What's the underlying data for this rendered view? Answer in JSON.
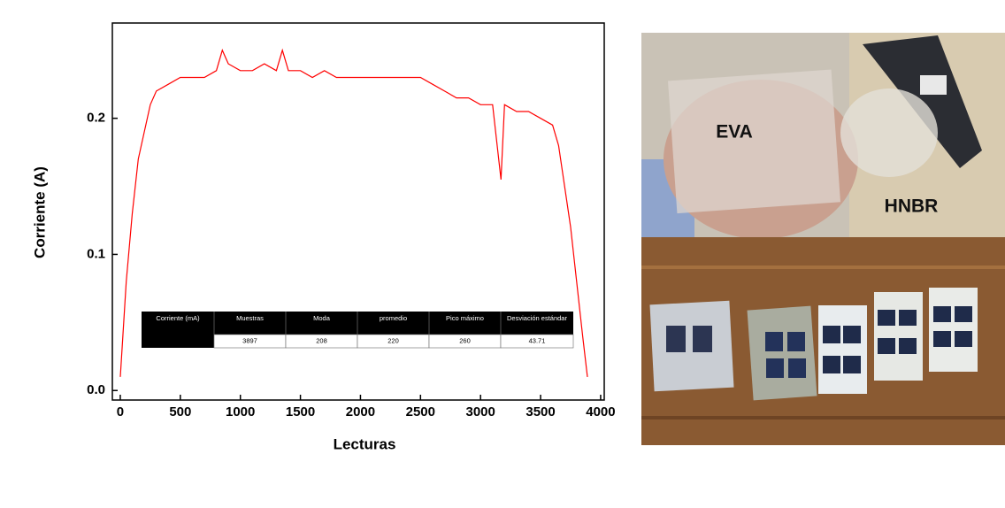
{
  "chart_data": {
    "type": "line",
    "xlabel": "Lecturas",
    "ylabel": "Corriente (A)",
    "x": [
      0,
      50,
      100,
      150,
      200,
      250,
      300,
      400,
      500,
      600,
      700,
      800,
      850,
      900,
      1000,
      1100,
      1200,
      1300,
      1350,
      1400,
      1500,
      1600,
      1700,
      1800,
      1900,
      2000,
      2100,
      2200,
      2300,
      2400,
      2500,
      2600,
      2700,
      2800,
      2900,
      3000,
      3100,
      3170,
      3200,
      3300,
      3400,
      3500,
      3600,
      3650,
      3700,
      3750,
      3800,
      3850,
      3890
    ],
    "series": [
      {
        "color": "#ff0000",
        "values": [
          0.01,
          0.08,
          0.13,
          0.17,
          0.19,
          0.21,
          0.22,
          0.225,
          0.23,
          0.23,
          0.23,
          0.235,
          0.25,
          0.24,
          0.235,
          0.235,
          0.24,
          0.235,
          0.25,
          0.235,
          0.235,
          0.23,
          0.235,
          0.23,
          0.23,
          0.23,
          0.23,
          0.23,
          0.23,
          0.23,
          0.23,
          0.225,
          0.22,
          0.215,
          0.215,
          0.21,
          0.21,
          0.155,
          0.21,
          0.205,
          0.205,
          0.2,
          0.195,
          0.18,
          0.15,
          0.12,
          0.08,
          0.04,
          0.01
        ]
      }
    ],
    "xlim": [
      -66,
      4030
    ],
    "xticks": [
      0,
      500,
      1000,
      1500,
      2000,
      2500,
      3000,
      3500,
      4000
    ],
    "ylim": [
      -0.007,
      0.27
    ],
    "yticks": [
      {
        "value": 0,
        "label": "0.0"
      },
      0.1,
      0.2
    ]
  },
  "table": {
    "header": [
      "Corriente (mA)",
      "Muestras",
      "Moda",
      "promedio",
      "Pico máximo",
      "Desviación estándar"
    ],
    "row": [
      3897,
      208,
      220,
      260,
      43.71
    ]
  },
  "photos": {
    "labels": [
      "EVA",
      "HNBR"
    ]
  }
}
